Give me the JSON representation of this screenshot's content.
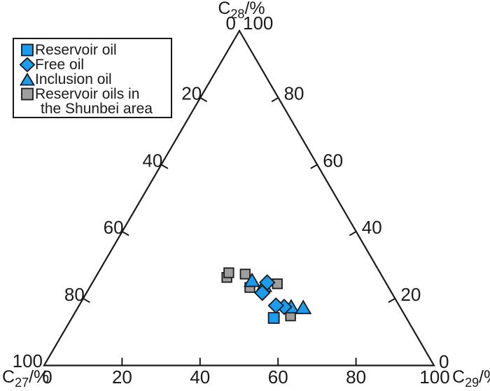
{
  "figure": {
    "background": "#ffffff"
  },
  "colors": {
    "blue": "#1B9CEE",
    "gray": "#9E9E9E",
    "line": "#1a1a1a",
    "text": "#1a1a1a"
  },
  "legend": {
    "items": [
      {
        "id": "reservoir-oil",
        "marker": "square",
        "color": "blue",
        "lines": [
          "Reservoir oil"
        ]
      },
      {
        "id": "free-oil",
        "marker": "diamond",
        "color": "blue",
        "lines": [
          "Free oil"
        ]
      },
      {
        "id": "inclusion-oil",
        "marker": "triangle",
        "color": "blue",
        "lines": [
          "Inclusion oil"
        ]
      },
      {
        "id": "shunbei-reservoir-oils",
        "marker": "square",
        "color": "gray",
        "lines": [
          "Reservoir oils in",
          "the Shunbei area"
        ]
      }
    ]
  },
  "chart_data": {
    "type": "scatter",
    "subtype": "ternary",
    "axes": {
      "top": {
        "element": "C",
        "subscript": "28",
        "unit": "/%"
      },
      "left": {
        "element": "C",
        "subscript": "27",
        "unit": "/%"
      },
      "right": {
        "element": "C",
        "subscript": "29",
        "unit": "/%"
      },
      "left_edge_ticks": [
        20,
        40,
        60,
        80
      ],
      "right_edge_ticks": [
        80,
        60,
        40,
        20
      ],
      "bottom_edge_ticks": [
        20,
        40,
        60,
        80
      ],
      "corner_labels": {
        "top_left": "0",
        "top_right": "100",
        "left_bottom": "100",
        "right_bottom": "0",
        "bottom_left": "0",
        "bottom_right": "100"
      },
      "range": [
        0,
        100
      ]
    },
    "series": [
      {
        "id": "shunbei-reservoir-oils",
        "name": "Reservoir oils in the Shunbei area",
        "marker": "square",
        "color": "gray",
        "points": [
          {
            "c27": 40.0,
            "c28": 26.3,
            "c29": 33.7
          },
          {
            "c27": 38.8,
            "c28": 27.7,
            "c29": 33.5
          },
          {
            "c27": 34.8,
            "c28": 27.3,
            "c29": 37.9
          },
          {
            "c27": 35.6,
            "c28": 23.3,
            "c29": 41.1
          },
          {
            "c27": 28.0,
            "c28": 24.4,
            "c29": 47.6
          },
          {
            "c27": 29.4,
            "c28": 14.8,
            "c29": 55.8
          }
        ]
      },
      {
        "id": "inclusion-oil",
        "name": "Inclusion oil",
        "marker": "triangle",
        "color": "blue",
        "points": [
          {
            "c27": 34.1,
            "c28": 25.2,
            "c29": 40.7
          },
          {
            "c27": 31.8,
            "c28": 23.7,
            "c29": 44.5
          },
          {
            "c27": 28.0,
            "c28": 17.3,
            "c29": 54.7
          },
          {
            "c27": 25.0,
            "c28": 17.1,
            "c29": 57.9
          }
        ]
      },
      {
        "id": "free-oil",
        "name": "Free oil",
        "marker": "diamond",
        "color": "blue",
        "points": [
          {
            "c27": 30.4,
            "c28": 24.8,
            "c29": 44.8
          },
          {
            "c27": 33.2,
            "c28": 21.7,
            "c29": 45.1
          },
          {
            "c27": 29.7,
            "c28": 17.5,
            "c29": 52.8
          },
          {
            "c27": 31.6,
            "c28": 17.9,
            "c29": 50.5
          }
        ]
      },
      {
        "id": "reservoir-oil",
        "name": "Reservoir oil",
        "marker": "square",
        "color": "blue",
        "points": [
          {
            "c27": 34.0,
            "c28": 14.2,
            "c29": 51.8
          }
        ]
      }
    ]
  }
}
